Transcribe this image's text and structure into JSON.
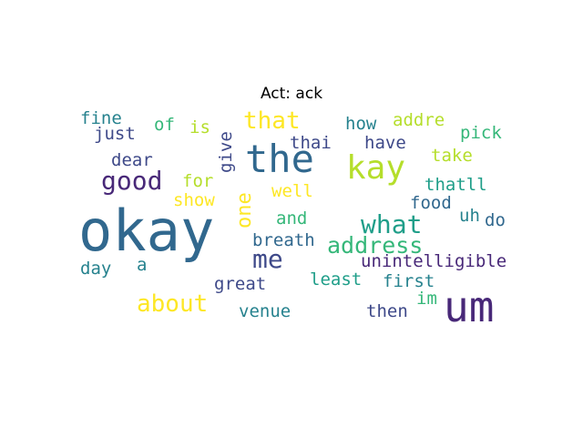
{
  "title": "Act: ack",
  "palette": {
    "yellow": "#fde725",
    "yellow_green": "#b5de2b",
    "light_green": "#6ece58",
    "green": "#35b779",
    "teal_green": "#1f9e89",
    "teal": "#26828e",
    "blue": "#31688e",
    "indigo": "#3e4989",
    "purple": "#482878",
    "dark_purple": "#440154"
  },
  "words": [
    {
      "text": "okay",
      "color": "#31688e"
    },
    {
      "text": "um",
      "color": "#482878"
    },
    {
      "text": "the",
      "color": "#31688e"
    },
    {
      "text": "kay",
      "color": "#b5de2b"
    },
    {
      "text": "what",
      "color": "#1f9e89"
    },
    {
      "text": "address",
      "color": "#35b779"
    },
    {
      "text": "good",
      "color": "#482878"
    },
    {
      "text": "that",
      "color": "#fde725"
    },
    {
      "text": "me",
      "color": "#3e4989"
    },
    {
      "text": "about",
      "color": "#fde725"
    },
    {
      "text": "one",
      "color": "#fde725"
    },
    {
      "text": "unintelligible",
      "color": "#482878"
    },
    {
      "text": "fine",
      "color": "#26828e"
    },
    {
      "text": "just",
      "color": "#3e4989"
    },
    {
      "text": "of",
      "color": "#35b779"
    },
    {
      "text": "is",
      "color": "#b5de2b"
    },
    {
      "text": "give",
      "color": "#3e4989"
    },
    {
      "text": "how",
      "color": "#26828e"
    },
    {
      "text": "addre",
      "color": "#b5de2b"
    },
    {
      "text": "pick",
      "color": "#35b779"
    },
    {
      "text": "thai",
      "color": "#3e4989"
    },
    {
      "text": "have",
      "color": "#3e4989"
    },
    {
      "text": "take",
      "color": "#b5de2b"
    },
    {
      "text": "dear",
      "color": "#3e4989"
    },
    {
      "text": "for",
      "color": "#b5de2b"
    },
    {
      "text": "show",
      "color": "#fde725"
    },
    {
      "text": "well",
      "color": "#fde725"
    },
    {
      "text": "thatll",
      "color": "#1f9e89"
    },
    {
      "text": "food",
      "color": "#31688e"
    },
    {
      "text": "uh",
      "color": "#26828e"
    },
    {
      "text": "do",
      "color": "#31688e"
    },
    {
      "text": "and",
      "color": "#35b779"
    },
    {
      "text": "breath",
      "color": "#31688e"
    },
    {
      "text": "day",
      "color": "#26828e"
    },
    {
      "text": "a",
      "color": "#26828e"
    },
    {
      "text": "least",
      "color": "#1f9e89"
    },
    {
      "text": "first",
      "color": "#26828e"
    },
    {
      "text": "great",
      "color": "#3e4989"
    },
    {
      "text": "im",
      "color": "#35b779"
    },
    {
      "text": "venue",
      "color": "#26828e"
    },
    {
      "text": "then",
      "color": "#3e4989"
    }
  ]
}
